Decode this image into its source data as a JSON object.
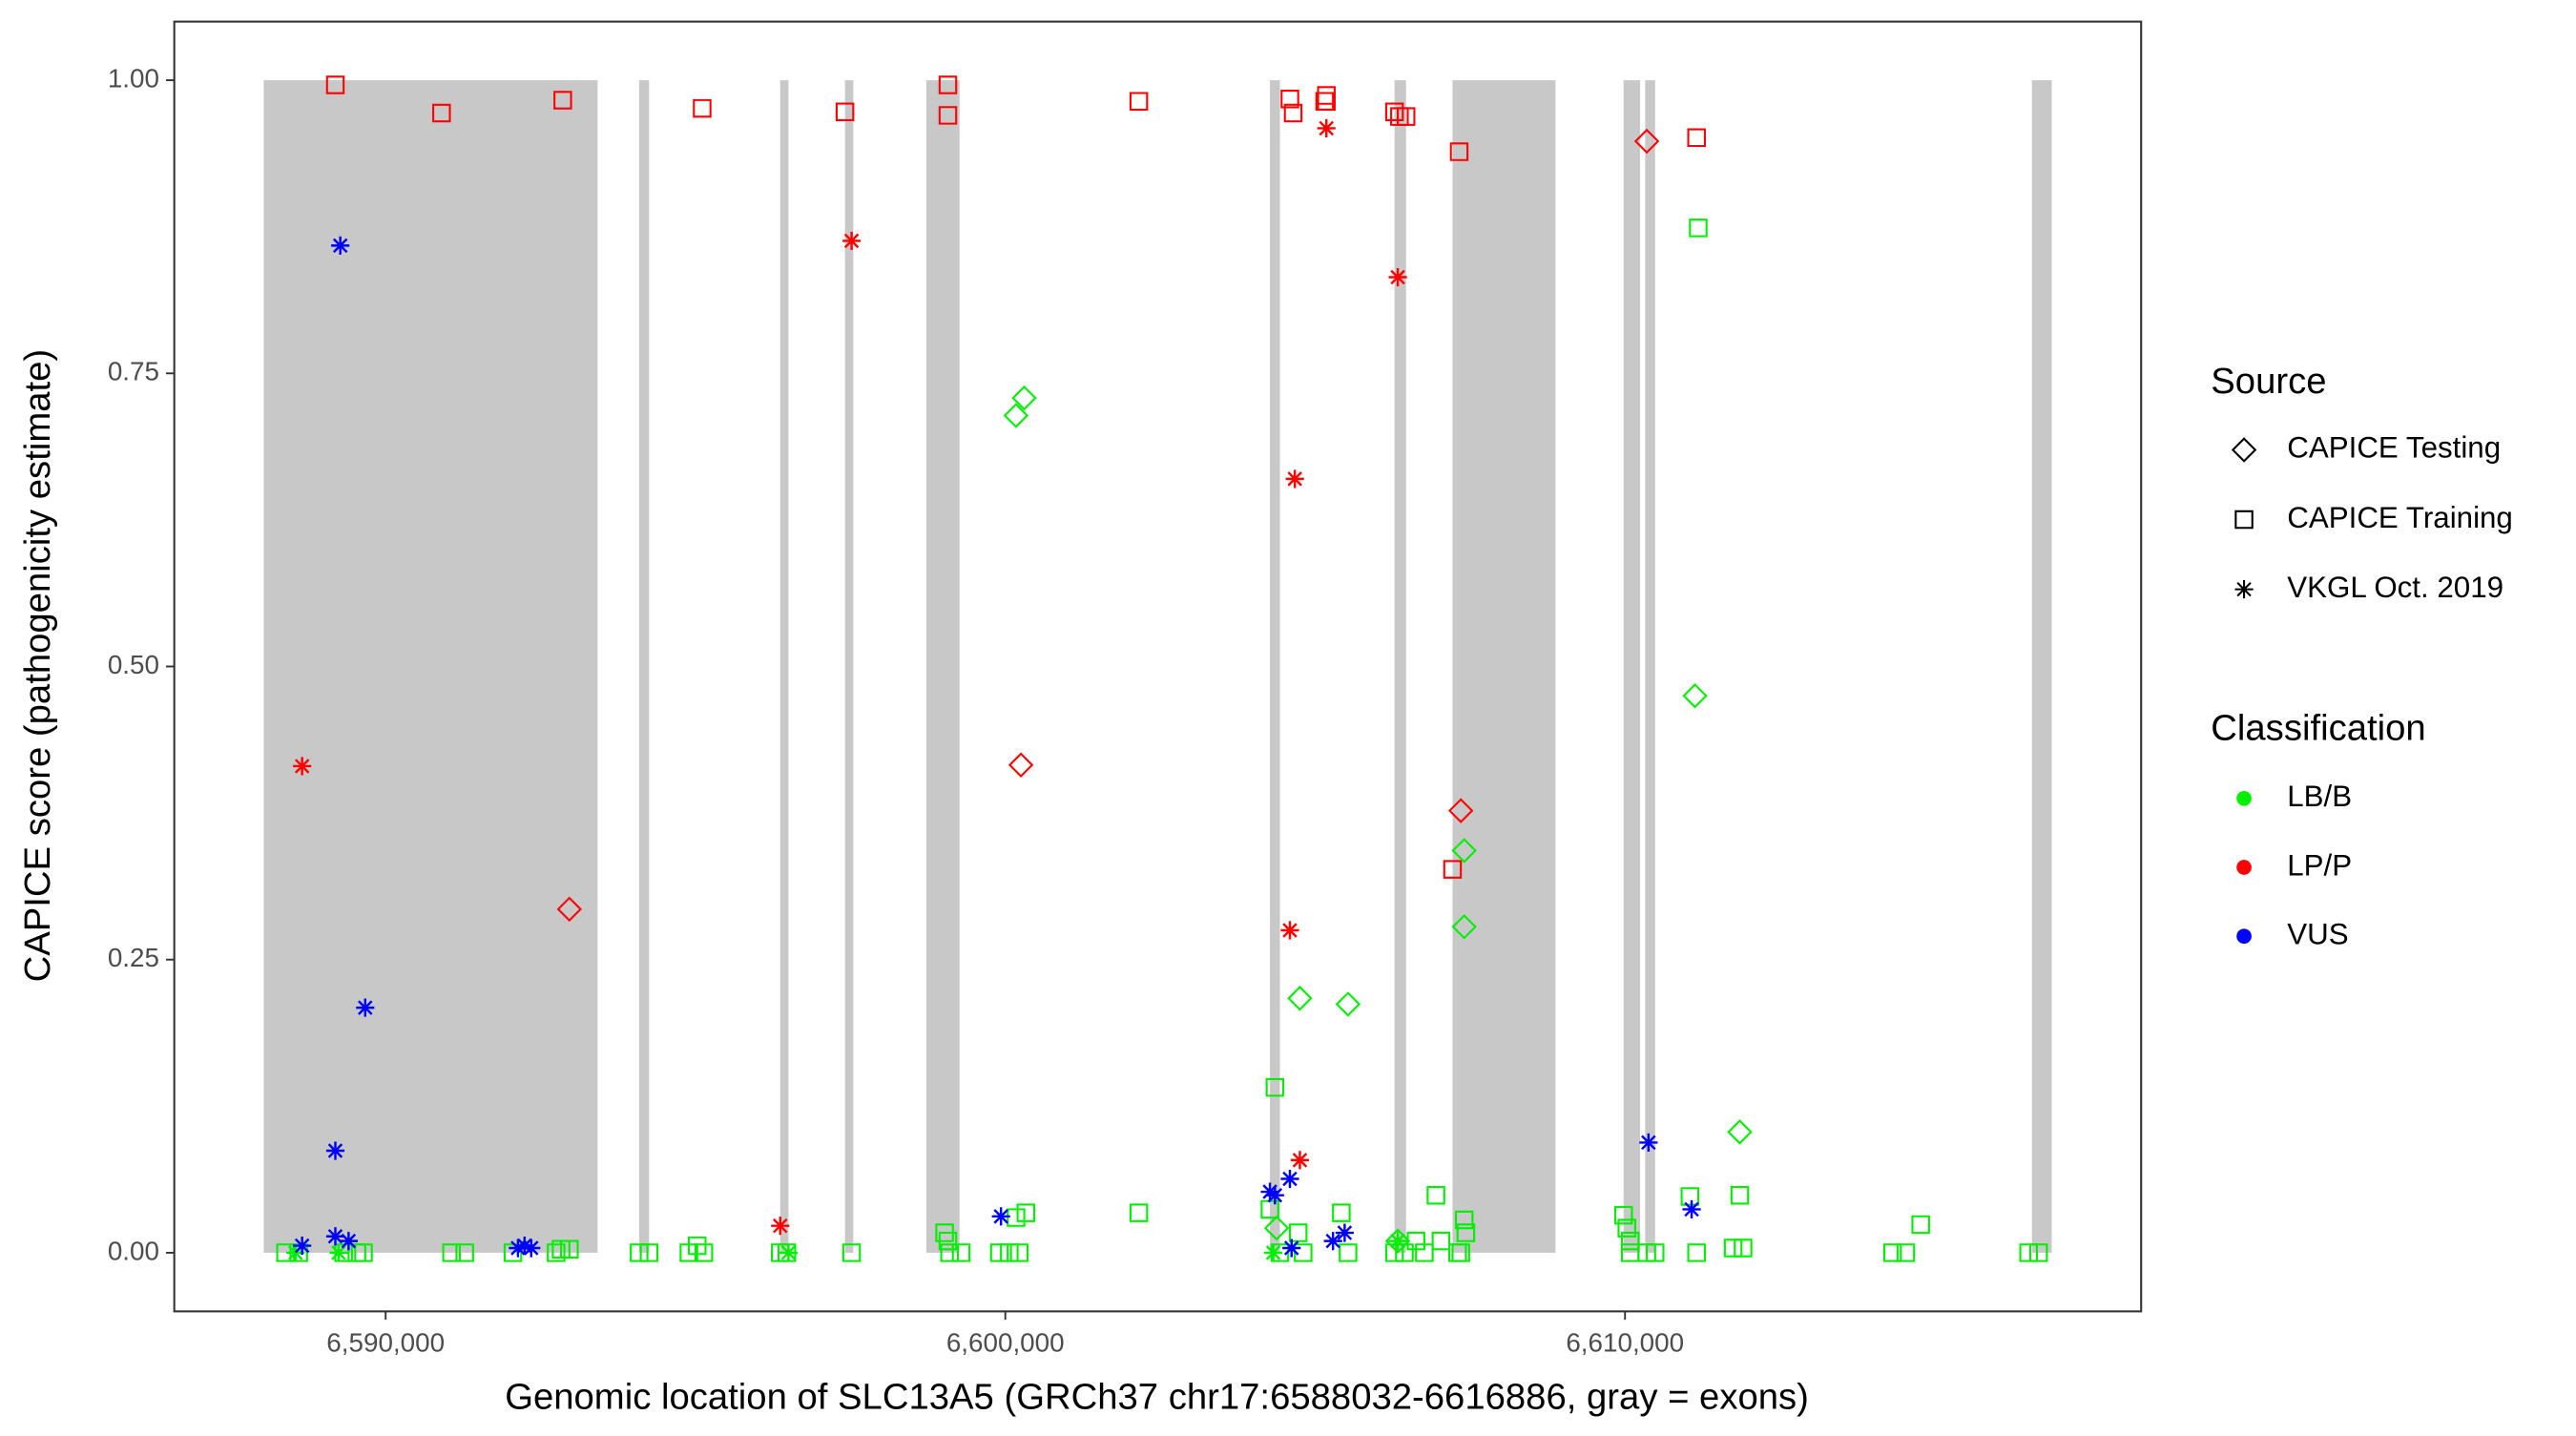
{
  "chart_data": {
    "type": "scatter",
    "x_label": "Genomic location of SLC13A5 (GRCh37 chr17:6588032-6616886, gray = exons)",
    "y_label": "CAPICE score (pathogenicity estimate)",
    "xlim": [
      6586589,
      6618329
    ],
    "ylim": [
      -0.05,
      1.05
    ],
    "xticks": [
      {
        "value": 6590000,
        "label": "6,590,000"
      },
      {
        "value": 6600000,
        "label": "6,600,000"
      },
      {
        "value": 6610000,
        "label": "6,610,000"
      }
    ],
    "yticks": [
      {
        "value": 0,
        "label": "0.00"
      },
      {
        "value": 0.25,
        "label": "0.25"
      },
      {
        "value": 0.5,
        "label": "0.50"
      },
      {
        "value": 0.75,
        "label": "0.75"
      },
      {
        "value": 1,
        "label": "1.00"
      }
    ],
    "grid": false,
    "exon_color": "#c8c8c8",
    "exons": [
      {
        "start": 6588032,
        "end": 6593420
      },
      {
        "start": 6594090,
        "end": 6594251
      },
      {
        "start": 6596367,
        "end": 6596501
      },
      {
        "start": 6597412,
        "end": 6597546
      },
      {
        "start": 6598725,
        "end": 6599261
      },
      {
        "start": 6604270,
        "end": 6604431
      },
      {
        "start": 6606280,
        "end": 6606467
      },
      {
        "start": 6607217,
        "end": 6608878
      },
      {
        "start": 6609977,
        "end": 6610244
      },
      {
        "start": 6610325,
        "end": 6610486
      },
      {
        "start": 6616567,
        "end": 6616886
      }
    ],
    "legend": {
      "source": {
        "title": "Source",
        "entries": [
          {
            "label": "CAPICE Testing",
            "shape": "diamond"
          },
          {
            "label": "CAPICE Training",
            "shape": "square"
          },
          {
            "label": "VKGL Oct. 2019",
            "shape": "star"
          }
        ]
      },
      "classification": {
        "title": "Classification",
        "entries": [
          {
            "label": "LB/B",
            "color": "#00ee00"
          },
          {
            "label": "LP/P",
            "color": "#ff0000"
          },
          {
            "label": "VUS",
            "color": "#0000ff"
          }
        ]
      }
    },
    "series": [
      {
        "shape": "square",
        "color": "#ff0000",
        "x": [
          6589188,
          6590902,
          6592858,
          6595108,
          6597412,
          6599073,
          6599073,
          6602154,
          6604592,
          6604645,
          6605154,
          6605181,
          6605181,
          6606280,
          6606360,
          6606467,
          6607324,
          6607217,
          6611155
        ],
        "y": [
          0.996,
          0.972,
          0.983,
          0.976,
          0.973,
          0.996,
          0.97,
          0.982,
          0.984,
          0.972,
          0.982,
          0.987,
          0.982,
          0.973,
          0.969,
          0.969,
          0.939,
          0.327,
          0.951
        ]
      },
      {
        "shape": "diamond",
        "color": "#ff0000",
        "x": [
          6592965,
          6600252,
          6607351,
          6610352
        ],
        "y": [
          0.293,
          0.416,
          0.377,
          0.948
        ]
      },
      {
        "shape": "star",
        "color": "#ff0000",
        "x": [
          6588652,
          6597519,
          6596367,
          6604592,
          6604672,
          6604753,
          6605181,
          6606333
        ],
        "y": [
          0.415,
          0.863,
          0.023,
          0.275,
          0.66,
          0.079,
          0.959,
          0.832
        ]
      },
      {
        "shape": "square",
        "color": "#00ee00",
        "x": [
          6588384,
          6588598,
          6589322,
          6589536,
          6589643,
          6591063,
          6591277,
          6592054,
          6592751,
          6592831,
          6592965,
          6594090,
          6594251,
          6594894,
          6595028,
          6595135,
          6596367,
          6596475,
          6597519,
          6599020,
          6599073,
          6599100,
          6599287,
          6599904,
          6600064,
          6600225,
          6600172,
          6600332,
          6602154,
          6604270,
          6604351,
          6604431,
          6604726,
          6604806,
          6605422,
          6605530,
          6606280,
          6606440,
          6606628,
          6606762,
          6606949,
          6607030,
          6607298,
          6607405,
          6607432,
          6607351,
          6609977,
          6610030,
          6610084,
          6610084,
          6610352,
          6610486,
          6611048,
          6611155,
          6611182,
          6611745,
          6611852,
          6611905,
          6614317,
          6614531,
          6614772,
          6616513,
          6616674
        ],
        "y": [
          0,
          0,
          0,
          0,
          0,
          0,
          0,
          0,
          0,
          0.003,
          0.003,
          0,
          0,
          0,
          0.006,
          0,
          0,
          0,
          0,
          0.017,
          0.01,
          0,
          0,
          0,
          0,
          0,
          0.03,
          0.034,
          0.034,
          0.037,
          0.141,
          0,
          0.017,
          0,
          0.034,
          0,
          0,
          0,
          0.01,
          0,
          0.049,
          0.01,
          0,
          0.028,
          0.017,
          0,
          0.032,
          0.021,
          0.01,
          0,
          0,
          0,
          0.048,
          0,
          0.874,
          0.004,
          0.049,
          0.004,
          0,
          0,
          0.024,
          0,
          0
        ]
      },
      {
        "shape": "diamond",
        "color": "#00ee00",
        "x": [
          6600172,
          6600305,
          6604378,
          6604753,
          6605530,
          6607405,
          6607405,
          6611129,
          6611852,
          6606333
        ],
        "y": [
          0.714,
          0.729,
          0.021,
          0.217,
          0.212,
          0.343,
          0.278,
          0.475,
          0.103,
          0.01
        ]
      },
      {
        "shape": "star",
        "color": "#00ee00",
        "x": [
          6588545,
          6589241,
          6596501,
          6606333,
          6604324
        ],
        "y": [
          0,
          0,
          0,
          0.01,
          0
        ]
      },
      {
        "shape": "star",
        "color": "#0000ff",
        "x": [
          6588652,
          6589268,
          6589670,
          6589188,
          6589188,
          6589402,
          6592135,
          6592242,
          6592349,
          6599930,
          6604270,
          6604351,
          6604592,
          6604619,
          6605288,
          6605476,
          6610379,
          6611075
        ],
        "y": [
          0.006,
          0.859,
          0.209,
          0.087,
          0.014,
          0.01,
          0.004,
          0.006,
          0.004,
          0.031,
          0.052,
          0.049,
          0.063,
          0.004,
          0.01,
          0.017,
          0.094,
          0.037
        ]
      }
    ]
  }
}
